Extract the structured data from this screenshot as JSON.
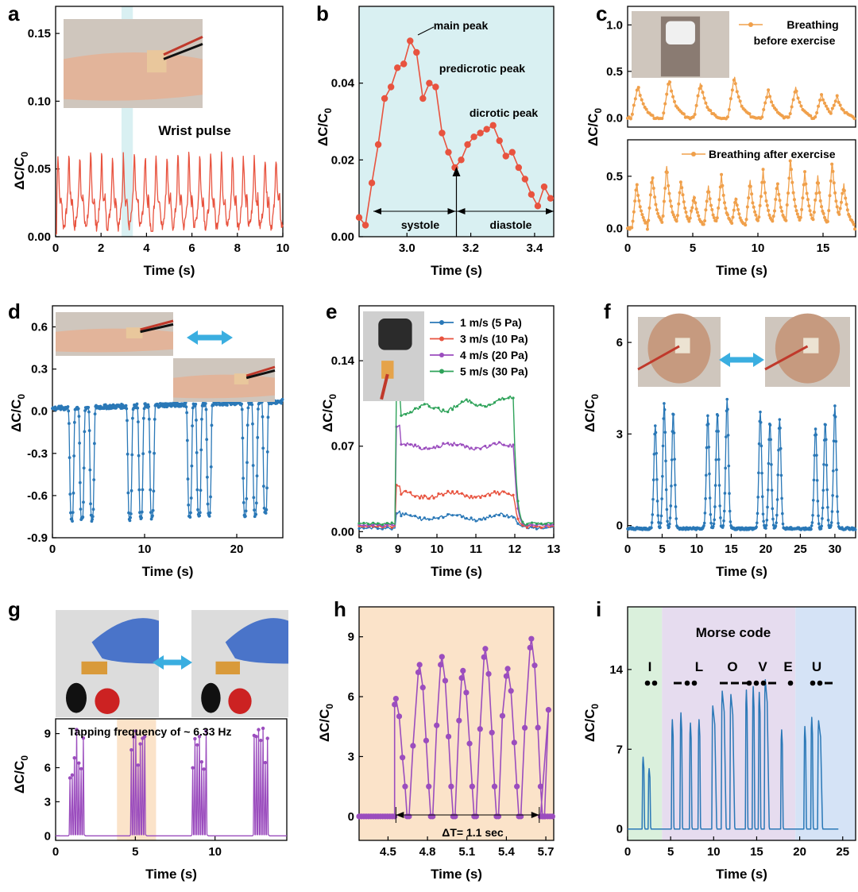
{
  "panels": {
    "a": {
      "label": "a"
    },
    "b": {
      "label": "b"
    },
    "c": {
      "label": "c"
    },
    "d": {
      "label": "d"
    },
    "e": {
      "label": "e"
    },
    "f": {
      "label": "f"
    },
    "g": {
      "label": "g"
    },
    "h": {
      "label": "h"
    },
    "i": {
      "label": "i"
    }
  },
  "colors": {
    "red": "#e8533f",
    "orange": "#f0a04b",
    "blue": "#2a78b7",
    "purple": "#9b4dbe",
    "green": "#2fa35a",
    "lightblue": "#d9f0f2",
    "peach": "#fbe3c9",
    "mint": "#daf0dc",
    "lavender": "#e6dcef",
    "sky": "#d5e3f6"
  },
  "chart_data": [
    {
      "id": "a",
      "type": "line",
      "xlabel": "Time (s)",
      "ylabel": "ΔC/C0",
      "xlim": [
        0,
        10
      ],
      "ylim": [
        0,
        0.17
      ],
      "xticks": [
        "0",
        "2",
        "4",
        "6",
        "8",
        "10"
      ],
      "yticks": [
        "0.00",
        "0.05",
        "0.10",
        "0.15"
      ],
      "annotations": [
        "Wrist pulse"
      ],
      "highlight_x": [
        2.9,
        3.4
      ],
      "series": [
        {
          "color": "#e8533f",
          "x_range": [
            0,
            10
          ],
          "period": 0.48,
          "baseline": 0.02,
          "peak": 0.055
        }
      ]
    },
    {
      "id": "b",
      "type": "line",
      "xlabel": "Time (s)",
      "ylabel": "ΔC/C0",
      "xlim": [
        2.85,
        3.46
      ],
      "ylim": [
        0,
        0.06
      ],
      "xticks": [
        "3.0",
        "3.2",
        "3.4"
      ],
      "yticks": [
        "0.00",
        "0.02",
        "0.04"
      ],
      "annotations": {
        "main": "main peak",
        "predicrotic": "predicrotic peak",
        "dicrotic": "dicrotic peak",
        "systole": "systole",
        "diastole": "diastole"
      },
      "series": [
        {
          "color": "#e8533f",
          "x": [
            2.85,
            2.87,
            2.89,
            2.91,
            2.93,
            2.95,
            2.97,
            2.99,
            3.01,
            3.03,
            3.05,
            3.07,
            3.09,
            3.11,
            3.13,
            3.15,
            3.17,
            3.19,
            3.21,
            3.23,
            3.25,
            3.27,
            3.29,
            3.31,
            3.33,
            3.35,
            3.37,
            3.39,
            3.41,
            3.43,
            3.45
          ],
          "y": [
            0.005,
            0.003,
            0.014,
            0.024,
            0.036,
            0.039,
            0.044,
            0.045,
            0.051,
            0.048,
            0.036,
            0.04,
            0.039,
            0.027,
            0.022,
            0.018,
            0.02,
            0.024,
            0.026,
            0.027,
            0.028,
            0.029,
            0.025,
            0.021,
            0.022,
            0.018,
            0.015,
            0.011,
            0.008,
            0.013,
            0.01
          ]
        }
      ]
    },
    {
      "id": "c-top",
      "type": "line",
      "xlabel": "",
      "ylabel": "ΔC/C0",
      "xlim": [
        0,
        17.5
      ],
      "ylim": [
        -0.1,
        1.2
      ],
      "xticks": [],
      "yticks": [
        "0.0",
        "0.5",
        "1.0"
      ],
      "legend": "Breathing before exercise",
      "series": [
        {
          "name": "Breathing before exercise",
          "color": "#f0a04b",
          "peaks_x": [
            0.8,
            3.2,
            5.6,
            8.2,
            10.8,
            12.9,
            14.9,
            16.1
          ],
          "peaks_y": [
            0.35,
            0.42,
            0.38,
            0.45,
            0.3,
            0.32,
            0.25,
            0.22
          ]
        }
      ]
    },
    {
      "id": "c-bottom",
      "type": "line",
      "xlabel": "Time (s)",
      "ylabel": "",
      "xlim": [
        0,
        17.5
      ],
      "ylim": [
        -0.08,
        0.85
      ],
      "xticks": [
        "0",
        "5",
        "10",
        "15"
      ],
      "yticks": [
        "0.0",
        "0.5"
      ],
      "legend": "Breathing after exercise",
      "series": [
        {
          "name": "Breathing after exercise",
          "color": "#f0a04b",
          "peaks_x": [
            0.7,
            1.9,
            3.0,
            4.1,
            5.1,
            6.2,
            7.2,
            8.3,
            9.4,
            10.4,
            11.5,
            12.5,
            13.6,
            14.6,
            15.7,
            16.6
          ],
          "peaks_y": [
            0.44,
            0.52,
            0.6,
            0.48,
            0.32,
            0.4,
            0.52,
            0.3,
            0.46,
            0.56,
            0.45,
            0.68,
            0.55,
            0.5,
            0.65,
            0.42
          ]
        }
      ]
    },
    {
      "id": "d",
      "type": "line",
      "xlabel": "Time (s)",
      "ylabel": "ΔC/C0",
      "xlim": [
        0,
        25
      ],
      "ylim": [
        -0.9,
        0.75
      ],
      "xticks": [
        "0",
        "10",
        "20"
      ],
      "yticks": [
        "-0.9",
        "-0.6",
        "-0.3",
        "0.0",
        "0.3",
        "0.6"
      ],
      "series": [
        {
          "color": "#2a78b7",
          "dips_x": [
            2.1,
            3.2,
            4.3,
            8.4,
            9.6,
            10.8,
            14.9,
            15.9,
            17.0,
            20.9,
            22.0,
            23.1
          ],
          "dip_y": -0.78,
          "baseline": 0.02
        }
      ]
    },
    {
      "id": "e",
      "type": "line",
      "xlabel": "Time (s)",
      "ylabel": "ΔC/C0",
      "xlim": [
        8,
        13
      ],
      "ylim": [
        -0.005,
        0.185
      ],
      "xticks": [
        "8",
        "9",
        "10",
        "11",
        "12",
        "13"
      ],
      "yticks": [
        "0.00",
        "0.07",
        "0.14"
      ],
      "series": [
        {
          "name": "1 m/s (5 Pa)",
          "color": "#2a78b7",
          "level": 0.012
        },
        {
          "name": "3 m/s (10 Pa)",
          "color": "#e8533f",
          "level": 0.03
        },
        {
          "name": "4 m/s (20 Pa)",
          "color": "#9b4dbe",
          "level": 0.07
        },
        {
          "name": "5 m/s (30 Pa)",
          "color": "#2fa35a",
          "level": 0.098
        }
      ]
    },
    {
      "id": "f",
      "type": "line",
      "xlabel": "Time (s)",
      "ylabel": "ΔC/C0",
      "xlim": [
        0,
        33
      ],
      "ylim": [
        -0.4,
        7.2
      ],
      "xticks": [
        "0",
        "5",
        "10",
        "15",
        "20",
        "25",
        "30"
      ],
      "yticks": [
        "0",
        "3",
        "6"
      ],
      "series": [
        {
          "color": "#2a78b7",
          "peaks_x": [
            4.0,
            5.3,
            6.6,
            11.6,
            13.0,
            14.4,
            19.2,
            20.6,
            22.0,
            27.2,
            28.6,
            30.0
          ],
          "peaks_y": [
            3.4,
            4.1,
            3.8,
            3.7,
            3.8,
            4.2,
            3.8,
            3.5,
            3.6,
            3.3,
            3.5,
            4.0
          ]
        }
      ]
    },
    {
      "id": "g",
      "type": "line",
      "xlabel": "Time (s)",
      "ylabel": "ΔC/C0",
      "xlim": [
        0,
        14.5
      ],
      "ylim": [
        -0.4,
        10.3
      ],
      "xticks": [
        "0",
        "5",
        "10"
      ],
      "yticks": [
        "0",
        "3",
        "6",
        "9"
      ],
      "annotations": [
        "Tapping frequency of ~ 6.33 Hz"
      ],
      "highlight_x": [
        3.85,
        6.3
      ],
      "series": [
        {
          "color": "#9b4dbe",
          "bursts_x": [
            0.85,
            4.7,
            8.55,
            12.4
          ],
          "per_burst": 7
        }
      ]
    },
    {
      "id": "h",
      "type": "line",
      "xlabel": "Time (s)",
      "ylabel": "ΔC/C0",
      "xlim": [
        4.28,
        5.76
      ],
      "ylim": [
        -1.2,
        10.5
      ],
      "xticks": [
        "4.5",
        "4.8",
        "5.1",
        "5.4",
        "5.7"
      ],
      "yticks": [
        "0",
        "3",
        "6",
        "9"
      ],
      "annotations": [
        "ΔT= 1.1 sec"
      ],
      "series": [
        {
          "color": "#9b4dbe",
          "peaks_x": [
            4.56,
            4.74,
            4.91,
            5.07,
            5.24,
            5.41,
            5.59
          ],
          "peaks_y": [
            5.9,
            7.6,
            8.0,
            7.3,
            8.4,
            7.4,
            8.9
          ]
        }
      ]
    },
    {
      "id": "i",
      "type": "line",
      "xlabel": "Time (s)",
      "ylabel": "ΔC/C0",
      "xlim": [
        0,
        26.5
      ],
      "ylim": [
        -1,
        19.5
      ],
      "xticks": [
        "0",
        "5",
        "10",
        "15",
        "20",
        "25"
      ],
      "yticks": [
        "0",
        "7",
        "14"
      ],
      "annotations": {
        "title": "Morse code",
        "letters": [
          "I",
          "L",
          "O",
          "V",
          "E",
          "U"
        ]
      },
      "regions": [
        {
          "from": 0,
          "to": 4
        },
        {
          "from": 4,
          "to": 19.5
        },
        {
          "from": 19.5,
          "to": 26.5
        }
      ],
      "series": [
        {
          "color": "#2a78b7",
          "peaks_x": [
            1.8,
            2.5,
            5.2,
            6.2,
            7.3,
            8.3,
            9.9,
            11.0,
            12.0,
            13.8,
            14.6,
            15.3,
            16.0,
            17.9,
            20.6,
            21.4,
            22.2
          ],
          "peaks_y": [
            6.3,
            5.3,
            9.6,
            10.2,
            9.3,
            9.6,
            10.8,
            12.1,
            11.8,
            12.2,
            12.5,
            12.0,
            13.1,
            8.7,
            9.0,
            9.8,
            9.5
          ]
        }
      ]
    }
  ]
}
